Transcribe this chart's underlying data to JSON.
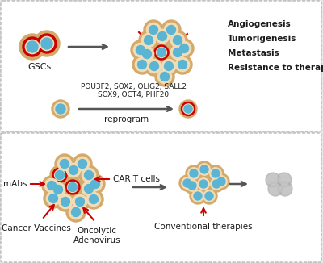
{
  "bg_color": "#e8e8e8",
  "cell_outer": "#d4a96a",
  "cell_ring_red": "#cc0000",
  "cell_core": "#5ab4d4",
  "cell_ring_white": "#f0ddb8",
  "text_color": "#1a1a1a",
  "arrow_color": "#555555",
  "red_arrow_color": "#cc0000",
  "top_right_labels": [
    "Angiogenesis",
    "Tumorigenesis",
    "Metastasis",
    "Resistance to therapies"
  ],
  "reprogram_genes": "POU3F2, SOX2, OLIG2, SALL2\nSOX9, OCT4, PHF20",
  "reprogram_label": "reprogram",
  "gsc_label": "GSCs",
  "mabs_label": "mAbs",
  "car_label": "CAR T cells",
  "vaccine_label": "Cancer Vaccines",
  "onco_label": "Oncolytic\nAdenovirus",
  "conv_label": "Conventional therapies"
}
